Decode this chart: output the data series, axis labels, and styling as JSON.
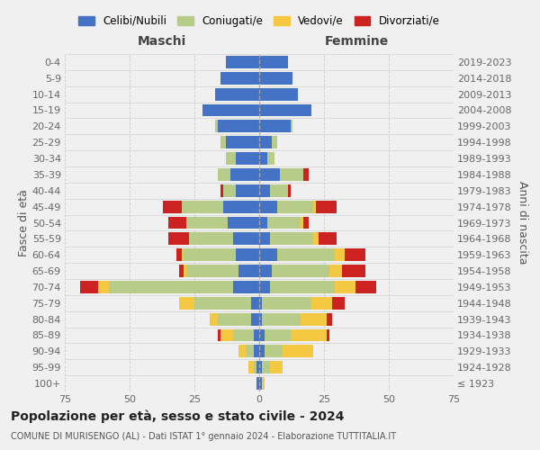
{
  "age_groups": [
    "100+",
    "95-99",
    "90-94",
    "85-89",
    "80-84",
    "75-79",
    "70-74",
    "65-69",
    "60-64",
    "55-59",
    "50-54",
    "45-49",
    "40-44",
    "35-39",
    "30-34",
    "25-29",
    "20-24",
    "15-19",
    "10-14",
    "5-9",
    "0-4"
  ],
  "birth_years": [
    "≤ 1923",
    "1924-1928",
    "1929-1933",
    "1934-1938",
    "1939-1943",
    "1944-1948",
    "1949-1953",
    "1954-1958",
    "1959-1963",
    "1964-1968",
    "1969-1973",
    "1974-1978",
    "1979-1983",
    "1984-1988",
    "1989-1993",
    "1994-1998",
    "1999-2003",
    "2004-2008",
    "2009-2013",
    "2014-2018",
    "2019-2023"
  ],
  "colors": {
    "celibi": "#4472c4",
    "coniugati": "#b8cc8a",
    "vedovi": "#f5c842",
    "divorziati": "#cc2222"
  },
  "maschi": {
    "celibi": [
      1,
      1,
      2,
      2,
      3,
      3,
      10,
      8,
      9,
      10,
      12,
      14,
      9,
      11,
      9,
      13,
      16,
      22,
      17,
      15,
      13
    ],
    "coniugati": [
      0,
      1,
      3,
      8,
      13,
      22,
      48,
      20,
      20,
      17,
      16,
      16,
      5,
      5,
      4,
      2,
      1,
      0,
      0,
      0,
      0
    ],
    "vedovi": [
      0,
      2,
      3,
      5,
      3,
      6,
      4,
      1,
      1,
      0,
      0,
      0,
      0,
      0,
      0,
      0,
      0,
      0,
      0,
      0,
      0
    ],
    "divorziati": [
      0,
      0,
      0,
      1,
      0,
      0,
      7,
      2,
      2,
      8,
      7,
      7,
      1,
      0,
      0,
      0,
      0,
      0,
      0,
      0,
      0
    ]
  },
  "femmine": {
    "celibi": [
      1,
      1,
      2,
      2,
      1,
      1,
      4,
      5,
      7,
      4,
      3,
      7,
      4,
      8,
      3,
      5,
      12,
      20,
      15,
      13,
      11
    ],
    "coniugati": [
      0,
      3,
      7,
      10,
      15,
      19,
      25,
      22,
      22,
      17,
      13,
      14,
      7,
      9,
      3,
      2,
      1,
      0,
      0,
      0,
      0
    ],
    "vedovi": [
      1,
      5,
      12,
      14,
      10,
      8,
      8,
      5,
      4,
      2,
      1,
      1,
      0,
      0,
      0,
      0,
      0,
      0,
      0,
      0,
      0
    ],
    "divorziati": [
      0,
      0,
      0,
      1,
      2,
      5,
      8,
      9,
      8,
      7,
      2,
      8,
      1,
      2,
      0,
      0,
      0,
      0,
      0,
      0,
      0
    ]
  },
  "title": "Popolazione per età, sesso e stato civile - 2024",
  "subtitle": "COMUNE DI MURISENGO (AL) - Dati ISTAT 1° gennaio 2024 - Elaborazione TUTTITALIA.IT",
  "xlabel_left": "Maschi",
  "xlabel_right": "Femmine",
  "ylabel_left": "Fasce di età",
  "ylabel_right": "Anni di nascita",
  "xlim": 75,
  "legend_labels": [
    "Celibi/Nubili",
    "Coniugati/e",
    "Vedovi/e",
    "Divorziati/e"
  ],
  "background_color": "#f0f0f0"
}
